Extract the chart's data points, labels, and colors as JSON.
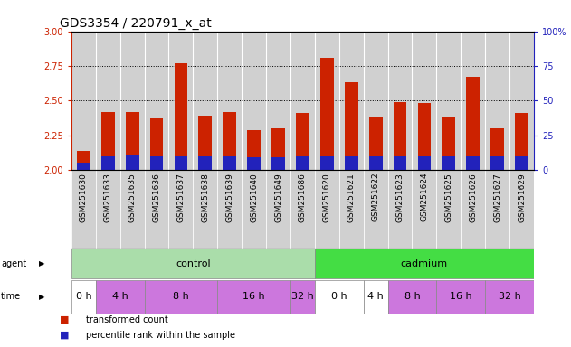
{
  "title": "GDS3354 / 220791_x_at",
  "samples": [
    "GSM251630",
    "GSM251633",
    "GSM251635",
    "GSM251636",
    "GSM251637",
    "GSM251638",
    "GSM251639",
    "GSM251640",
    "GSM251649",
    "GSM251686",
    "GSM251620",
    "GSM251621",
    "GSM251622",
    "GSM251623",
    "GSM251624",
    "GSM251625",
    "GSM251626",
    "GSM251627",
    "GSM251629"
  ],
  "transformed_count": [
    2.14,
    2.42,
    2.42,
    2.37,
    2.77,
    2.39,
    2.42,
    2.29,
    2.3,
    2.41,
    2.81,
    2.63,
    2.38,
    2.49,
    2.48,
    2.38,
    2.67,
    2.3,
    2.41
  ],
  "percentile": [
    5,
    10,
    11,
    10,
    10,
    10,
    10,
    9,
    9,
    10,
    10,
    10,
    10,
    10,
    10,
    10,
    10,
    10,
    10
  ],
  "y_min": 2.0,
  "y_max": 3.0,
  "yticks_left": [
    2.0,
    2.25,
    2.5,
    2.75,
    3.0
  ],
  "yticks_right": [
    0,
    25,
    50,
    75,
    100
  ],
  "bar_color": "#cc2200",
  "pct_color": "#2222bb",
  "cell_color": "#d0d0d0",
  "left_axis_color": "#cc2200",
  "right_axis_color": "#2222bb",
  "agent_groups": [
    {
      "label": "control",
      "start": 0,
      "end": 9,
      "color": "#aaddaa"
    },
    {
      "label": "cadmium",
      "start": 10,
      "end": 18,
      "color": "#44dd44"
    }
  ],
  "time_row": [
    {
      "label": "0 h",
      "start": 0,
      "end": 0,
      "color": "#ffffff"
    },
    {
      "label": "4 h",
      "start": 1,
      "end": 2,
      "color": "#cc77dd"
    },
    {
      "label": "8 h",
      "start": 3,
      "end": 5,
      "color": "#cc77dd"
    },
    {
      "label": "16 h",
      "start": 6,
      "end": 8,
      "color": "#cc77dd"
    },
    {
      "label": "32 h",
      "start": 9,
      "end": 9,
      "color": "#cc77dd"
    },
    {
      "label": "0 h",
      "start": 10,
      "end": 11,
      "color": "#ffffff"
    },
    {
      "label": "4 h",
      "start": 12,
      "end": 12,
      "color": "#ffffff"
    },
    {
      "label": "8 h",
      "start": 13,
      "end": 14,
      "color": "#cc77dd"
    },
    {
      "label": "16 h",
      "start": 15,
      "end": 16,
      "color": "#cc77dd"
    },
    {
      "label": "32 h",
      "start": 17,
      "end": 18,
      "color": "#cc77dd"
    }
  ],
  "title_fontsize": 10,
  "tick_fontsize": 7,
  "sample_fontsize": 6.5,
  "row_fontsize": 8,
  "legend_fontsize": 7,
  "bar_width": 0.55
}
